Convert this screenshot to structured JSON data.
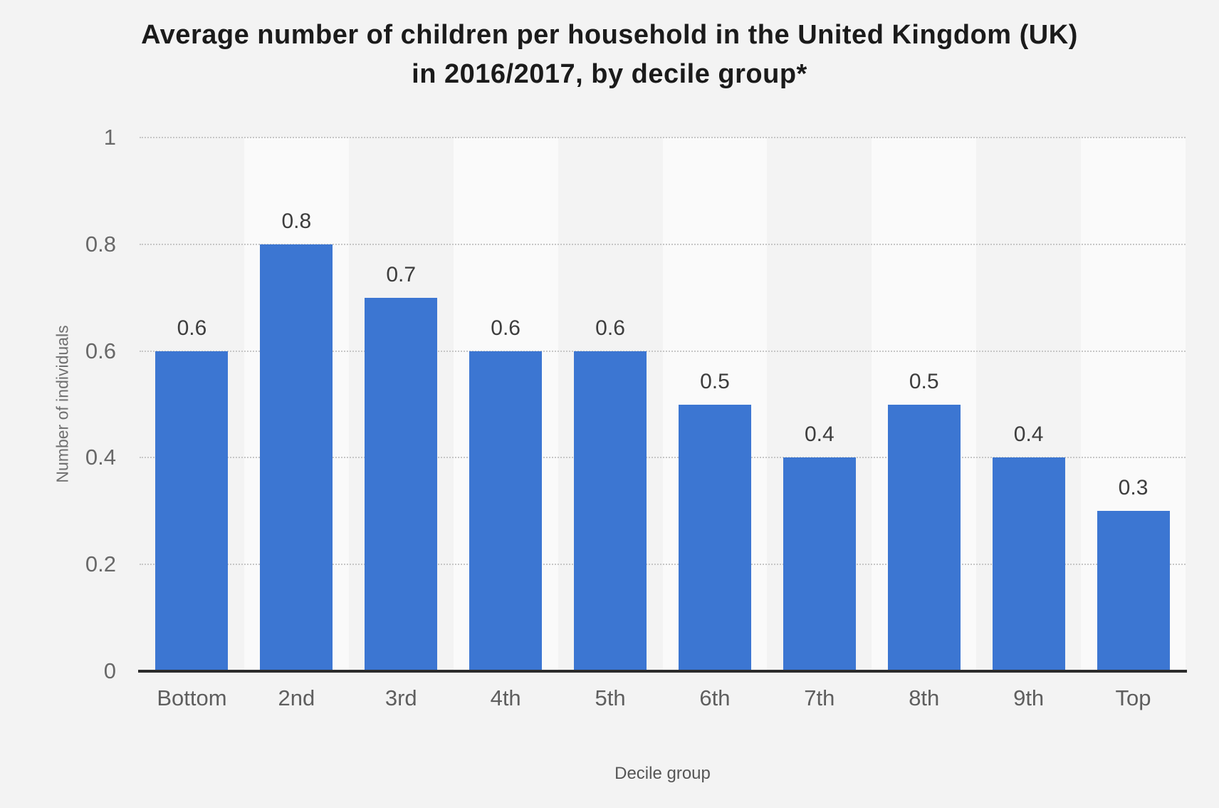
{
  "page": {
    "background": "#f3f3f3"
  },
  "title": {
    "line1": "Average number of children per household in the United Kingdom (UK)",
    "line2": "in 2016/2017, by decile group*"
  },
  "chart_data": {
    "type": "bar",
    "title": "Average number of children per household in the United Kingdom (UK) in 2016/2017, by decile group*",
    "categories": [
      "Bottom",
      "2nd",
      "3rd",
      "4th",
      "5th",
      "6th",
      "7th",
      "8th",
      "9th",
      "Top"
    ],
    "values": [
      0.6,
      0.8,
      0.7,
      0.6,
      0.6,
      0.5,
      0.4,
      0.5,
      0.4,
      0.3
    ],
    "value_labels": [
      "0.6",
      "0.8",
      "0.7",
      "0.6",
      "0.6",
      "0.5",
      "0.4",
      "0.5",
      "0.4",
      "0.3"
    ],
    "xlabel": "Decile group",
    "ylabel": "Number of individuals",
    "ylim": [
      0,
      1
    ],
    "yticks": [
      0,
      0.2,
      0.4,
      0.6,
      0.8,
      1
    ],
    "ytick_labels": [
      "0",
      "0.2",
      "0.4",
      "0.6",
      "0.8",
      "1"
    ],
    "grid": "horizontal-dotted",
    "legend": "none",
    "plot_bands": "alternating vertical column shading on even columns"
  },
  "colors": {
    "background": "#f3f3f3",
    "bar": "#3c76d2",
    "band_light": "#fafafa",
    "gridline": "#c6c6c6",
    "axis_line": "#2b2b2b",
    "title_text": "#1b1b1b",
    "tick_text": "#686868",
    "value_text": "#3d3d3d",
    "axis_title_text": "#707070"
  }
}
